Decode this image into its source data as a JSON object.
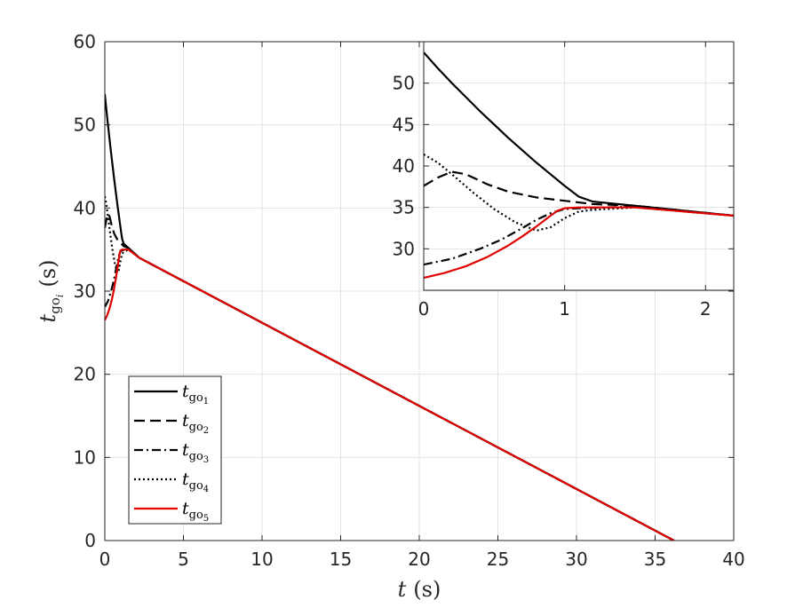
{
  "chart_data": [
    {
      "type": "line",
      "xlabel": "t (s)",
      "xlabel_var": "t",
      "xlabel_unit": "(s)",
      "ylabel": "t_go_i (s)",
      "ylabel_var": "t",
      "ylabel_sub": "go",
      "ylabel_subsub": "i",
      "ylabel_unit": "(s)",
      "xlim": [
        0,
        40
      ],
      "ylim": [
        0,
        60
      ],
      "xticks": [
        0,
        5,
        10,
        15,
        20,
        25,
        30,
        35,
        40
      ],
      "yticks": [
        0,
        10,
        20,
        30,
        40,
        50,
        60
      ],
      "grid": true,
      "legend_position": "bottom-left",
      "series": [
        {
          "name": "t_go_1",
          "label_var": "t",
          "label_sub": "go",
          "label_subsub": "1",
          "color": "#000000",
          "dash": "solid",
          "x": [
            0,
            0.1,
            0.2,
            0.3,
            0.4,
            0.5,
            0.6,
            0.7,
            0.8,
            0.9,
            1.0,
            1.1,
            1.2,
            1.5,
            2.2,
            36.2
          ],
          "y": [
            53.7,
            51.8,
            50.0,
            48.3,
            46.6,
            45.0,
            43.4,
            41.9,
            40.4,
            39.0,
            37.6,
            36.3,
            35.7,
            35.2,
            34.0,
            0
          ]
        },
        {
          "name": "t_go_2",
          "label_var": "t",
          "label_sub": "go",
          "label_subsub": "2",
          "color": "#000000",
          "dash": "dashed",
          "x": [
            0,
            0.1,
            0.2,
            0.3,
            0.45,
            0.6,
            0.8,
            1.0,
            1.2,
            1.5,
            2.2,
            36.2
          ],
          "y": [
            37.6,
            38.6,
            39.3,
            39.0,
            37.8,
            36.9,
            36.2,
            35.8,
            35.4,
            35.2,
            34.0,
            0
          ]
        },
        {
          "name": "t_go_3",
          "label_var": "t",
          "label_sub": "go",
          "label_subsub": "3",
          "color": "#000000",
          "dash": "dashdot",
          "x": [
            0,
            0.2,
            0.4,
            0.55,
            0.7,
            0.8,
            0.9,
            1.0,
            1.1,
            1.5,
            2.2,
            36.2
          ],
          "y": [
            28.1,
            28.8,
            30.0,
            31.1,
            32.5,
            33.5,
            34.3,
            34.8,
            34.9,
            35.1,
            34.0,
            0
          ]
        },
        {
          "name": "t_go_4",
          "label_var": "t",
          "label_sub": "go",
          "label_subsub": "4",
          "color": "#000000",
          "dash": "dotted",
          "x": [
            0,
            0.1,
            0.2,
            0.35,
            0.5,
            0.65,
            0.8,
            0.9,
            1.0,
            1.1,
            1.2,
            1.5,
            2.2,
            36.2
          ],
          "y": [
            41.4,
            40.4,
            39.0,
            36.8,
            34.8,
            33.2,
            32.2,
            32.6,
            33.7,
            34.5,
            34.7,
            35.0,
            34.0,
            0
          ]
        },
        {
          "name": "t_go_5",
          "label_var": "t",
          "label_sub": "go",
          "label_subsub": "5",
          "color": "#e00000",
          "dash": "solid",
          "x": [
            0,
            0.15,
            0.3,
            0.45,
            0.6,
            0.7,
            0.8,
            0.9,
            0.95,
            1.0,
            1.1,
            1.2,
            1.5,
            2.2,
            36.2
          ],
          "y": [
            26.5,
            27.1,
            27.9,
            29.0,
            30.4,
            31.5,
            32.7,
            34.0,
            34.6,
            34.9,
            35.0,
            35.0,
            35.0,
            34.0,
            0
          ]
        }
      ]
    },
    {
      "type": "line",
      "inset": true,
      "xlim": [
        0,
        2.2
      ],
      "ylim": [
        25,
        55
      ],
      "xticks": [
        0,
        1,
        2
      ],
      "yticks": [
        30,
        35,
        40,
        45,
        50
      ],
      "grid": true,
      "series_ref": "same as main chart"
    }
  ]
}
